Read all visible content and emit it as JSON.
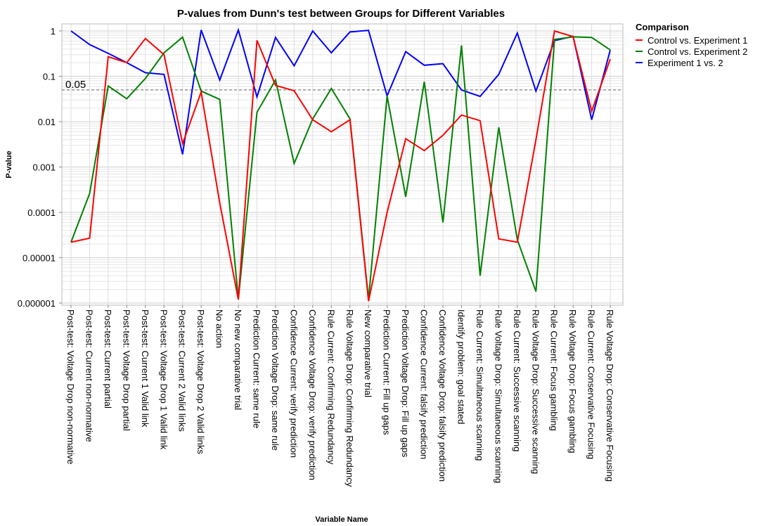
{
  "chart_data": {
    "type": "line",
    "title": "P-values from Dunn's test between Groups for Different Variables",
    "xlabel": "Variable Name",
    "ylabel": "P-value",
    "yscale": "log",
    "ylim": [
      1e-06,
      1.4
    ],
    "yticks": [
      1,
      0.1,
      0.01,
      0.001,
      0.0001,
      1e-05,
      1e-06
    ],
    "ytick_labels": [
      "1",
      "0.1",
      "0.01",
      "0.001",
      "0.0001",
      "0.00001",
      "0.000001"
    ],
    "grid": true,
    "legend": {
      "title": "Comparison",
      "placement": "right"
    },
    "reference_line": {
      "y": 0.05,
      "label": "0.05",
      "style": "dashed"
    },
    "categories": [
      "Post-test: Voltage Drop non-normative",
      "Post-test: Current non-normative",
      "Post-test: Current partial",
      "Post-test: Voltage Drop partial",
      "Post-test: Current 1 Valid link",
      "Post-test: Voltage Drop 1 Valid link",
      "Post-test: Current 2 Valid links",
      "Post-test: Voltage Drop 2 Valid links",
      "No action",
      "No new comparative trial",
      "Prediction Current: same rule",
      "Prediction Voltage Drop: same rule",
      "Confidence Current: verify prediction",
      "Confidence Voltage Drop: verify prediction",
      "Rule Current: Confirming Redundancy",
      "Rule Voltage Drop: Confirming Redundancy",
      "New comparative trial",
      "Prediction Current: Fill up gaps",
      "Prediction Voltage Drop: Fill up gaps",
      "Confidence Current: falsify prediction",
      "Confidence Voltage Drop: falsify prediction",
      "Identify problem: goal stated",
      "Rule Current: Simultaneous scanning",
      "Rule Voltage Drop: Simultaneous scanning",
      "Rule Current: Successive scanning",
      "Rule Voltage Drop: Successive scanning",
      "Rule Current: Focus gambling",
      "Rule Voltage Drop: Focus gambling",
      "Rule Current: Conservative Focusing",
      "Rule Voltage Drop: Conservative Focusing"
    ],
    "series": [
      {
        "name": "Control vs. Experiment 1",
        "color": "#ff0000",
        "values": [
          2.2e-05,
          2.7e-05,
          0.27,
          0.2,
          0.68,
          0.3,
          0.0033,
          0.045,
          0.00016,
          1.2e-06,
          0.62,
          0.063,
          0.048,
          0.011,
          0.006,
          0.011,
          1.1e-06,
          0.0001,
          0.0042,
          0.0023,
          0.005,
          0.014,
          0.0105,
          2.6e-05,
          2.2e-05,
          0.004,
          1.0,
          0.75,
          0.017,
          0.24
        ]
      },
      {
        "name": "Control vs. Experiment 2",
        "color": "#008000",
        "values": [
          2.2e-05,
          0.00026,
          0.061,
          0.032,
          0.09,
          0.33,
          0.73,
          0.047,
          0.031,
          1.2e-06,
          0.016,
          0.083,
          0.0012,
          0.0115,
          0.054,
          0.0115,
          1.2e-06,
          0.037,
          0.00022,
          0.076,
          6e-05,
          0.48,
          4e-06,
          0.0075,
          2.5e-05,
          1.8e-06,
          0.65,
          0.74,
          0.72,
          0.38
        ]
      },
      {
        "name": "Experiment 1 vs. 2",
        "color": "#0000ff",
        "values": [
          1.0,
          0.5,
          0.32,
          0.2,
          0.12,
          0.11,
          0.0019,
          1.05,
          0.083,
          1.05,
          0.035,
          0.72,
          0.17,
          1.0,
          0.33,
          0.95,
          1.03,
          0.037,
          0.35,
          0.175,
          0.19,
          0.05,
          0.036,
          0.11,
          0.9,
          0.047,
          0.61,
          0.76,
          0.011,
          0.38
        ]
      }
    ]
  }
}
